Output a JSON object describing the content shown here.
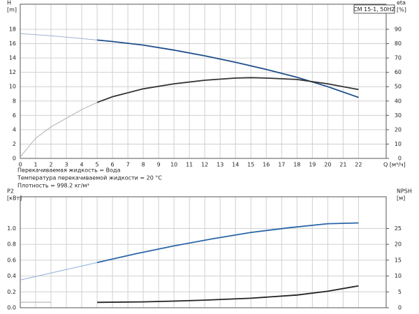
{
  "chart_data": [
    {
      "type": "line",
      "title": "CM 15-1, 50HZ",
      "ylabel": "H",
      "yunit": "[m]",
      "y2label": "eta",
      "y2unit": "[%]",
      "xlabel": "Q [м³/ч]",
      "xlim": [
        0,
        23.8
      ],
      "xticks": [
        0,
        1,
        2,
        3,
        4,
        5,
        6,
        7,
        8,
        9,
        10,
        11,
        12,
        13,
        14,
        15,
        16,
        17,
        18,
        19,
        20,
        21,
        22
      ],
      "ylim": [
        0,
        21.5
      ],
      "yticks": [
        0,
        2,
        4,
        6,
        8,
        10,
        12,
        14,
        16,
        18
      ],
      "y2lim": [
        0,
        107.5
      ],
      "y2ticks": [
        0,
        10,
        20,
        30,
        40,
        50,
        60,
        70,
        80,
        90
      ],
      "grid": true,
      "xtick_labels": true,
      "bold_from": 5,
      "series": [
        {
          "color": "#1f4e8c",
          "light_color": "#9fb4d0",
          "x": [
            0,
            2,
            4,
            5,
            6,
            8,
            10,
            12,
            14,
            16,
            18,
            20,
            22
          ],
          "values": [
            17.4,
            17.1,
            16.7,
            16.5,
            16.3,
            15.8,
            15.1,
            14.3,
            13.4,
            12.4,
            11.3,
            10.0,
            8.5
          ]
        },
        {
          "color": "#333333",
          "light_color": "#b0b0b0",
          "axis": "y2",
          "x": [
            0,
            1,
            2,
            3,
            4,
            5,
            6,
            8,
            10,
            12,
            14,
            15,
            16,
            18,
            20,
            22
          ],
          "values": [
            1,
            14,
            22,
            28,
            34,
            39,
            43,
            48.5,
            52,
            54.5,
            56,
            56.3,
            56,
            55,
            52,
            48
          ]
        }
      ]
    },
    {
      "type": "line",
      "ylabel": "P2",
      "yunit": "[кВт]",
      "y2label": "NPSH",
      "y2unit": "[м]",
      "xlim": [
        0,
        23.8
      ],
      "xticks": [
        0,
        1,
        2,
        3,
        4,
        5,
        6,
        7,
        8,
        9,
        10,
        11,
        12,
        13,
        14,
        15,
        16,
        17,
        18,
        19,
        20,
        21,
        22
      ],
      "ylim": [
        0,
        1.4
      ],
      "yticks": [
        {
          "value": 0,
          "label": "0.0"
        },
        0.2,
        0.4,
        0.6,
        0.8,
        {
          "value": 1,
          "label": "1.0"
        }
      ],
      "y2lim": [
        0,
        35
      ],
      "y2ticks": [
        0,
        5,
        10,
        15,
        20,
        25
      ],
      "grid": true,
      "xtick_labels": false,
      "bold_from": 5,
      "series": [
        {
          "color": "#2a66a8",
          "light_color": "#8fb0d6",
          "x": [
            0,
            2.5,
            5,
            7.5,
            10,
            12.5,
            15,
            17.5,
            20,
            22
          ],
          "values": [
            0.35,
            0.46,
            0.57,
            0.68,
            0.78,
            0.87,
            0.95,
            1.01,
            1.06,
            1.07
          ]
        },
        {
          "color": "#222222",
          "light_color": "#a8a8a8",
          "axis": "y2",
          "x": [
            0,
            2,
            3,
            5,
            8,
            10,
            12,
            15,
            18,
            20,
            22
          ],
          "values": [
            1.75,
            1.75,
            null,
            1.7,
            1.85,
            2.1,
            2.4,
            3.0,
            4.0,
            5.2,
            6.9
          ]
        }
      ]
    }
  ],
  "notes": [
    "Перекачиваемая жидкость = Вода",
    "Температура перекачиваемой жидкости = 20 °C",
    "Плотность = 998.2 кг/м³"
  ]
}
